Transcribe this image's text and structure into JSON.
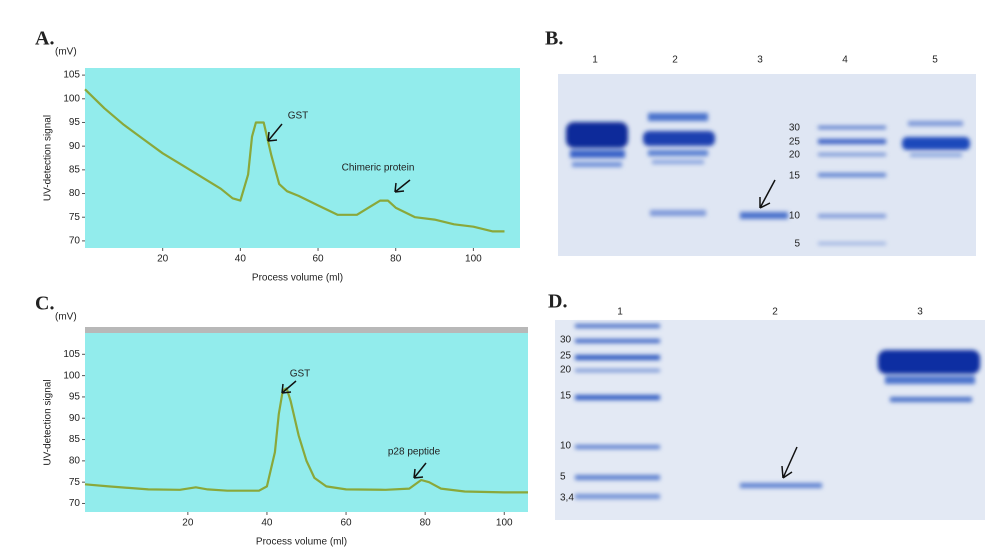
{
  "chart_data": [
    {
      "type": "line",
      "label": "A.",
      "y_unit": "(mV)",
      "y_label": "UV-detection signal",
      "x_label": "Process volume (ml)",
      "x": [
        0,
        5,
        10,
        15,
        20,
        25,
        30,
        35,
        38,
        40,
        42,
        43,
        44,
        46,
        48,
        50,
        52,
        55,
        60,
        65,
        70,
        73,
        76,
        78,
        80,
        85,
        90,
        95,
        100,
        105,
        108
      ],
      "values": [
        102,
        98,
        94.5,
        91.5,
        88.5,
        86,
        83.5,
        81,
        79,
        78.5,
        84,
        92,
        95,
        95,
        88,
        82,
        80.5,
        79.5,
        77.5,
        75.5,
        75.5,
        77,
        78.5,
        78.5,
        77,
        75,
        74.5,
        73.5,
        73,
        72,
        72
      ],
      "color": "#8aa83a",
      "background": "#92ecec",
      "xlim": [
        0,
        112
      ],
      "xticks": [
        20,
        40,
        60,
        80,
        100
      ],
      "ylim": [
        68.5,
        106.5
      ],
      "yticks": [
        70,
        75,
        80,
        85,
        90,
        95,
        100,
        105
      ],
      "annotations": [
        "GST",
        "Chimeric protein"
      ]
    },
    {
      "type": "gel",
      "label": "B.",
      "lanes": [
        "1",
        "2",
        "3",
        "4",
        "5"
      ],
      "marker_labels": [
        "30",
        "25",
        "20",
        "15",
        "10",
        "5"
      ]
    },
    {
      "type": "line",
      "label": "C.",
      "y_unit": "(mV)",
      "y_label": "UV-detection signal",
      "x_label": "Process volume (ml)",
      "x": [
        -6,
        0,
        10,
        18,
        22,
        25,
        30,
        38,
        40,
        42,
        43,
        44,
        45,
        46,
        48,
        50,
        52,
        55,
        60,
        70,
        76,
        79,
        81,
        84,
        90,
        100,
        106
      ],
      "values": [
        74.5,
        74,
        73.3,
        73.2,
        73.8,
        73.3,
        73,
        73,
        74,
        82,
        91,
        96.5,
        97,
        94,
        86,
        80,
        76,
        74,
        73.3,
        73.2,
        73.5,
        75.5,
        75,
        73.5,
        72.8,
        72.6,
        72.6
      ],
      "color": "#8aa83a",
      "background": "#92ecec",
      "xlim": [
        -6,
        106
      ],
      "xticks": [
        20,
        40,
        60,
        80,
        100
      ],
      "ylim": [
        68,
        110
      ],
      "yticks": [
        70,
        75,
        80,
        85,
        90,
        95,
        100,
        105
      ],
      "annotations": [
        "GST",
        "p28 peptide"
      ]
    },
    {
      "type": "gel",
      "label": "D.",
      "lanes": [
        "1",
        "2",
        "3"
      ],
      "marker_labels": [
        "30",
        "25",
        "20",
        "15",
        "10",
        "5",
        "3,4"
      ]
    }
  ]
}
